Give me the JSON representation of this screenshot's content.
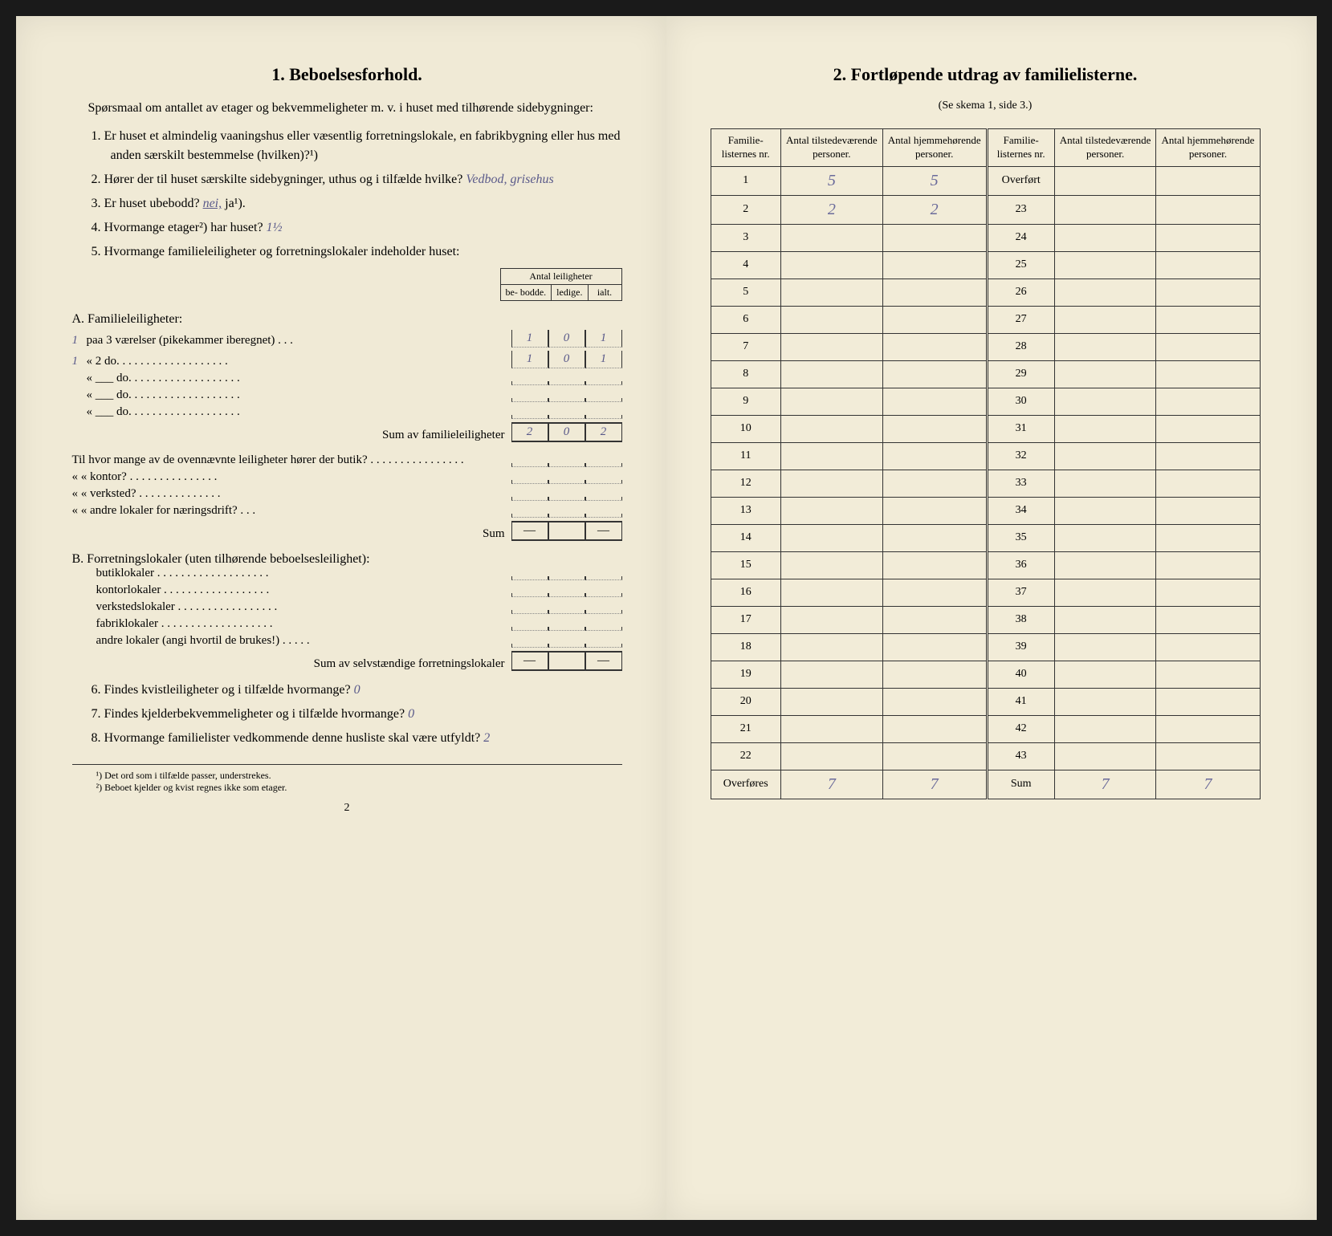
{
  "left": {
    "title": "1.   Beboelsesforhold.",
    "intro": "Spørsmaal om antallet av etager og bekvemmeligheter m. v. i huset med tilhørende sidebygninger:",
    "q1": "1.  Er huset et almindelig vaaningshus eller væsentlig forretningslokale, en fabrikbygning eller hus med anden særskilt bestemmelse (hvilken)?¹)",
    "q2_prefix": "2.  Hører der til huset særskilte sidebygninger, uthus og i tilfælde hvilke?",
    "q2_ans": "Vedbod, grisehus",
    "q3_prefix": "3.  Er huset ubebodd?",
    "q3_ans": "nei,",
    "q3_suffix": "ja¹).",
    "q4_prefix": "4.  Hvormange etager²) har huset?",
    "q4_ans": "1½",
    "q5": "5.  Hvormange familieleiligheter og forretningslokaler indeholder huset:",
    "mini_header": "Antal leiligheter",
    "mini_cols": [
      "be-\nbodde.",
      "ledige.",
      "ialt."
    ],
    "sectionA_title": "A. Familieleiligheter:",
    "a_rows": [
      {
        "prefix": "1",
        "label": "paa 3 værelser (pikekammer iberegnet) . . .",
        "vals": [
          "1",
          "0",
          "1"
        ]
      },
      {
        "prefix": "1",
        "label": "«   2   do.   . . . . . . . . . . . . . . . . . .",
        "vals": [
          "1",
          "0",
          "1"
        ]
      },
      {
        "prefix": "",
        "label": "«   ___   do.   . . . . . . . . . . . . . . . . . .",
        "vals": [
          "",
          "",
          ""
        ]
      },
      {
        "prefix": "",
        "label": "«   ___   do.   . . . . . . . . . . . . . . . . . .",
        "vals": [
          "",
          "",
          ""
        ]
      },
      {
        "prefix": "",
        "label": "«   ___   do.   . . . . . . . . . . . . . . . . . .",
        "vals": [
          "",
          "",
          ""
        ]
      }
    ],
    "a_sum_label": "Sum av familieleiligheter",
    "a_sum": [
      "2",
      "0",
      "2"
    ],
    "butik_intro": "Til hvor mange av de ovennævnte leiligheter hører der butik? . . . . . . . . . . . . . . . .",
    "butik_rows": [
      "«      «   kontor? . . . . . . . . . . . . . . .",
      "«      «   verksted? . . . . . . . . . . . . . .",
      "«      «   andre lokaler for næringsdrift? . . ."
    ],
    "butik_sum": "Sum",
    "sectionB_title": "B. Forretningslokaler (uten tilhørende beboelsesleilighet):",
    "b_rows": [
      "butiklokaler . . . . . . . . . . . . . . . . . . .",
      "kontorlokaler  . . . . . . . . . . . . . . . . . .",
      "verkstedslokaler . . . . . . . . . . . . . . . . .",
      "fabriklokaler . . . . . . . . . . . . . . . . . . .",
      "andre lokaler (angi hvortil de brukes!) . . . . ."
    ],
    "b_sum_label": "Sum av selvstændige forretningslokaler",
    "q6": "6.  Findes kvistleiligheter og i tilfælde hvormange?",
    "q6_ans": "0",
    "q7": "7.  Findes kjelderbekvemmeligheter og i tilfælde hvormange?",
    "q7_ans": "0",
    "q8": "8.  Hvormange familielister vedkommende denne husliste skal være utfyldt?",
    "q8_ans": "2",
    "fn1": "¹) Det ord som i tilfælde passer, understrekes.",
    "fn2": "²) Beboet kjelder og kvist regnes ikke som etager.",
    "pagenum": "2"
  },
  "right": {
    "title": "2.   Fortløpende utdrag av familielisterne.",
    "subtitle": "(Se skema 1, side 3.)",
    "headers": [
      "Familie-\nlisternes\nnr.",
      "Antal\ntilstedeværende\npersoner.",
      "Antal\nhjemmehørende\npersoner.",
      "Familie-\nlisternes\nnr.",
      "Antal\ntilstedeværende\npersoner.",
      "Antal\nhjemmehørende\npersoner."
    ],
    "rows": [
      [
        "1",
        "5",
        "5",
        "Overført",
        "",
        ""
      ],
      [
        "2",
        "2",
        "2",
        "23",
        "",
        ""
      ],
      [
        "3",
        "",
        "",
        "24",
        "",
        ""
      ],
      [
        "4",
        "",
        "",
        "25",
        "",
        ""
      ],
      [
        "5",
        "",
        "",
        "26",
        "",
        ""
      ],
      [
        "6",
        "",
        "",
        "27",
        "",
        ""
      ],
      [
        "7",
        "",
        "",
        "28",
        "",
        ""
      ],
      [
        "8",
        "",
        "",
        "29",
        "",
        ""
      ],
      [
        "9",
        "",
        "",
        "30",
        "",
        ""
      ],
      [
        "10",
        "",
        "",
        "31",
        "",
        ""
      ],
      [
        "11",
        "",
        "",
        "32",
        "",
        ""
      ],
      [
        "12",
        "",
        "",
        "33",
        "",
        ""
      ],
      [
        "13",
        "",
        "",
        "34",
        "",
        ""
      ],
      [
        "14",
        "",
        "",
        "35",
        "",
        ""
      ],
      [
        "15",
        "",
        "",
        "36",
        "",
        ""
      ],
      [
        "16",
        "",
        "",
        "37",
        "",
        ""
      ],
      [
        "17",
        "",
        "",
        "38",
        "",
        ""
      ],
      [
        "18",
        "",
        "",
        "39",
        "",
        ""
      ],
      [
        "19",
        "",
        "",
        "40",
        "",
        ""
      ],
      [
        "20",
        "",
        "",
        "41",
        "",
        ""
      ],
      [
        "21",
        "",
        "",
        "42",
        "",
        ""
      ],
      [
        "22",
        "",
        "",
        "43",
        "",
        ""
      ]
    ],
    "footer": [
      "Overføres",
      "7",
      "7",
      "Sum",
      "7",
      "7"
    ]
  }
}
